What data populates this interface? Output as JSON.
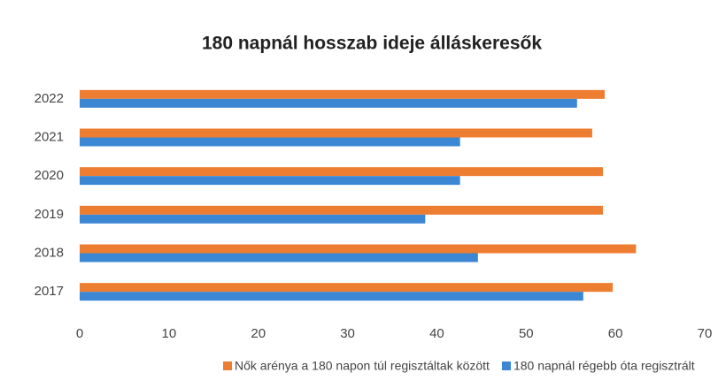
{
  "chart_data": {
    "type": "barh",
    "title": "180 napnál hosszab ideje álláskeresők",
    "categories": [
      "2022",
      "2021",
      "2020",
      "2019",
      "2018",
      "2017"
    ],
    "series": [
      {
        "name": "Nők arénya a 180 napon túl regisztáltak között",
        "color": "#ed7d31",
        "values": [
          58.8,
          57.4,
          58.6,
          58.6,
          62.3,
          59.7
        ]
      },
      {
        "name": "180 napnál régebb óta regisztrált",
        "color": "#3b87d3",
        "values": [
          55.7,
          42.6,
          42.6,
          38.7,
          44.6,
          56.4
        ]
      }
    ],
    "xlim": [
      0,
      70
    ],
    "xticks": [
      0,
      10,
      20,
      30,
      40,
      50,
      60,
      70
    ],
    "grid": false
  }
}
